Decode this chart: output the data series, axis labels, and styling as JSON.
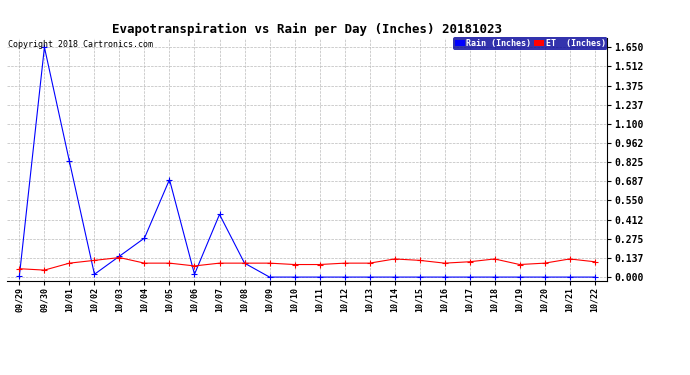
{
  "title": "Evapotranspiration vs Rain per Day (Inches) 20181023",
  "copyright_text": "Copyright 2018 Cartronics.com",
  "x_labels": [
    "09/29",
    "09/30",
    "10/01",
    "10/02",
    "10/03",
    "10/04",
    "10/05",
    "10/06",
    "10/07",
    "10/08",
    "10/09",
    "10/10",
    "10/11",
    "10/12",
    "10/13",
    "10/14",
    "10/15",
    "10/16",
    "10/17",
    "10/18",
    "10/19",
    "10/20",
    "10/21",
    "10/22"
  ],
  "rain_values": [
    0.01,
    1.65,
    0.83,
    0.02,
    0.15,
    0.28,
    0.7,
    0.02,
    0.45,
    0.1,
    0.0,
    0.0,
    0.0,
    0.0,
    0.0,
    0.0,
    0.0,
    0.0,
    0.0,
    0.0,
    0.0,
    0.0,
    0.0,
    0.0
  ],
  "et_values": [
    0.06,
    0.05,
    0.1,
    0.12,
    0.14,
    0.1,
    0.1,
    0.08,
    0.1,
    0.1,
    0.1,
    0.09,
    0.09,
    0.1,
    0.1,
    0.13,
    0.12,
    0.1,
    0.11,
    0.13,
    0.09,
    0.1,
    0.13,
    0.11
  ],
  "rain_color": "#0000ff",
  "et_color": "#ff0000",
  "background_color": "#ffffff",
  "grid_color": "#bbbbbb",
  "title_fontsize": 9,
  "copyright_fontsize": 6,
  "tick_fontsize": 6,
  "ytick_fontsize": 7,
  "legend_rain_label": "Rain (Inches)",
  "legend_et_label": "ET  (Inches)",
  "yticks": [
    0.0,
    0.137,
    0.275,
    0.412,
    0.55,
    0.687,
    0.825,
    0.962,
    1.1,
    1.237,
    1.375,
    1.512,
    1.65
  ],
  "ylim": [
    -0.03,
    1.72
  ],
  "legend_bg_color": "#000099"
}
